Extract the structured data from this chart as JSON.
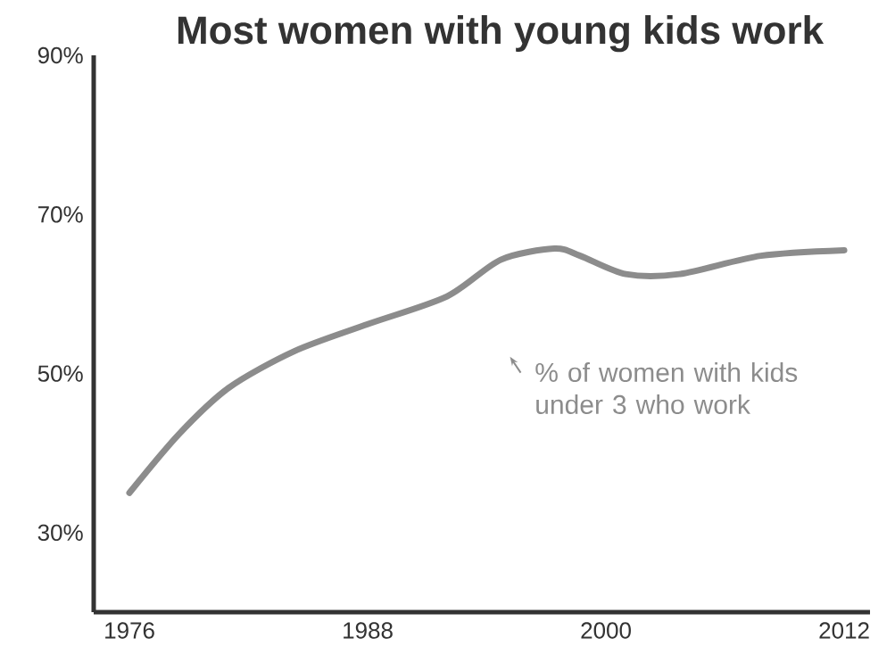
{
  "chart_data": {
    "type": "line",
    "title": "Most women with young kids work",
    "x": [
      1976,
      1978.5,
      1981,
      1984.3,
      1988,
      1992,
      1994.7,
      1997.4,
      1998.7,
      2001,
      2003.7,
      2007.8,
      2012
    ],
    "series": [
      {
        "color": "#8c8c8c",
        "values": [
          35,
          42.4,
          48.2,
          52.8,
          56.2,
          59.7,
          64.3,
          65.7,
          64.8,
          62.5,
          62.5,
          64.8,
          65.5
        ]
      }
    ],
    "xlim": [
      1974.2,
      2013.3
    ],
    "ylim": [
      20,
      90
    ],
    "xticks": [
      1976,
      1988,
      2000,
      2012
    ],
    "yticks": [
      {
        "value": 30,
        "label": "30%"
      },
      {
        "value": 50,
        "label": "50%"
      },
      {
        "value": 70,
        "label": "70%"
      },
      {
        "value": 90,
        "label": "90%"
      }
    ],
    "annotations": [
      "% of women with kids under 3 who work"
    ],
    "grid": false,
    "marker": "none",
    "line_style": "solid"
  }
}
